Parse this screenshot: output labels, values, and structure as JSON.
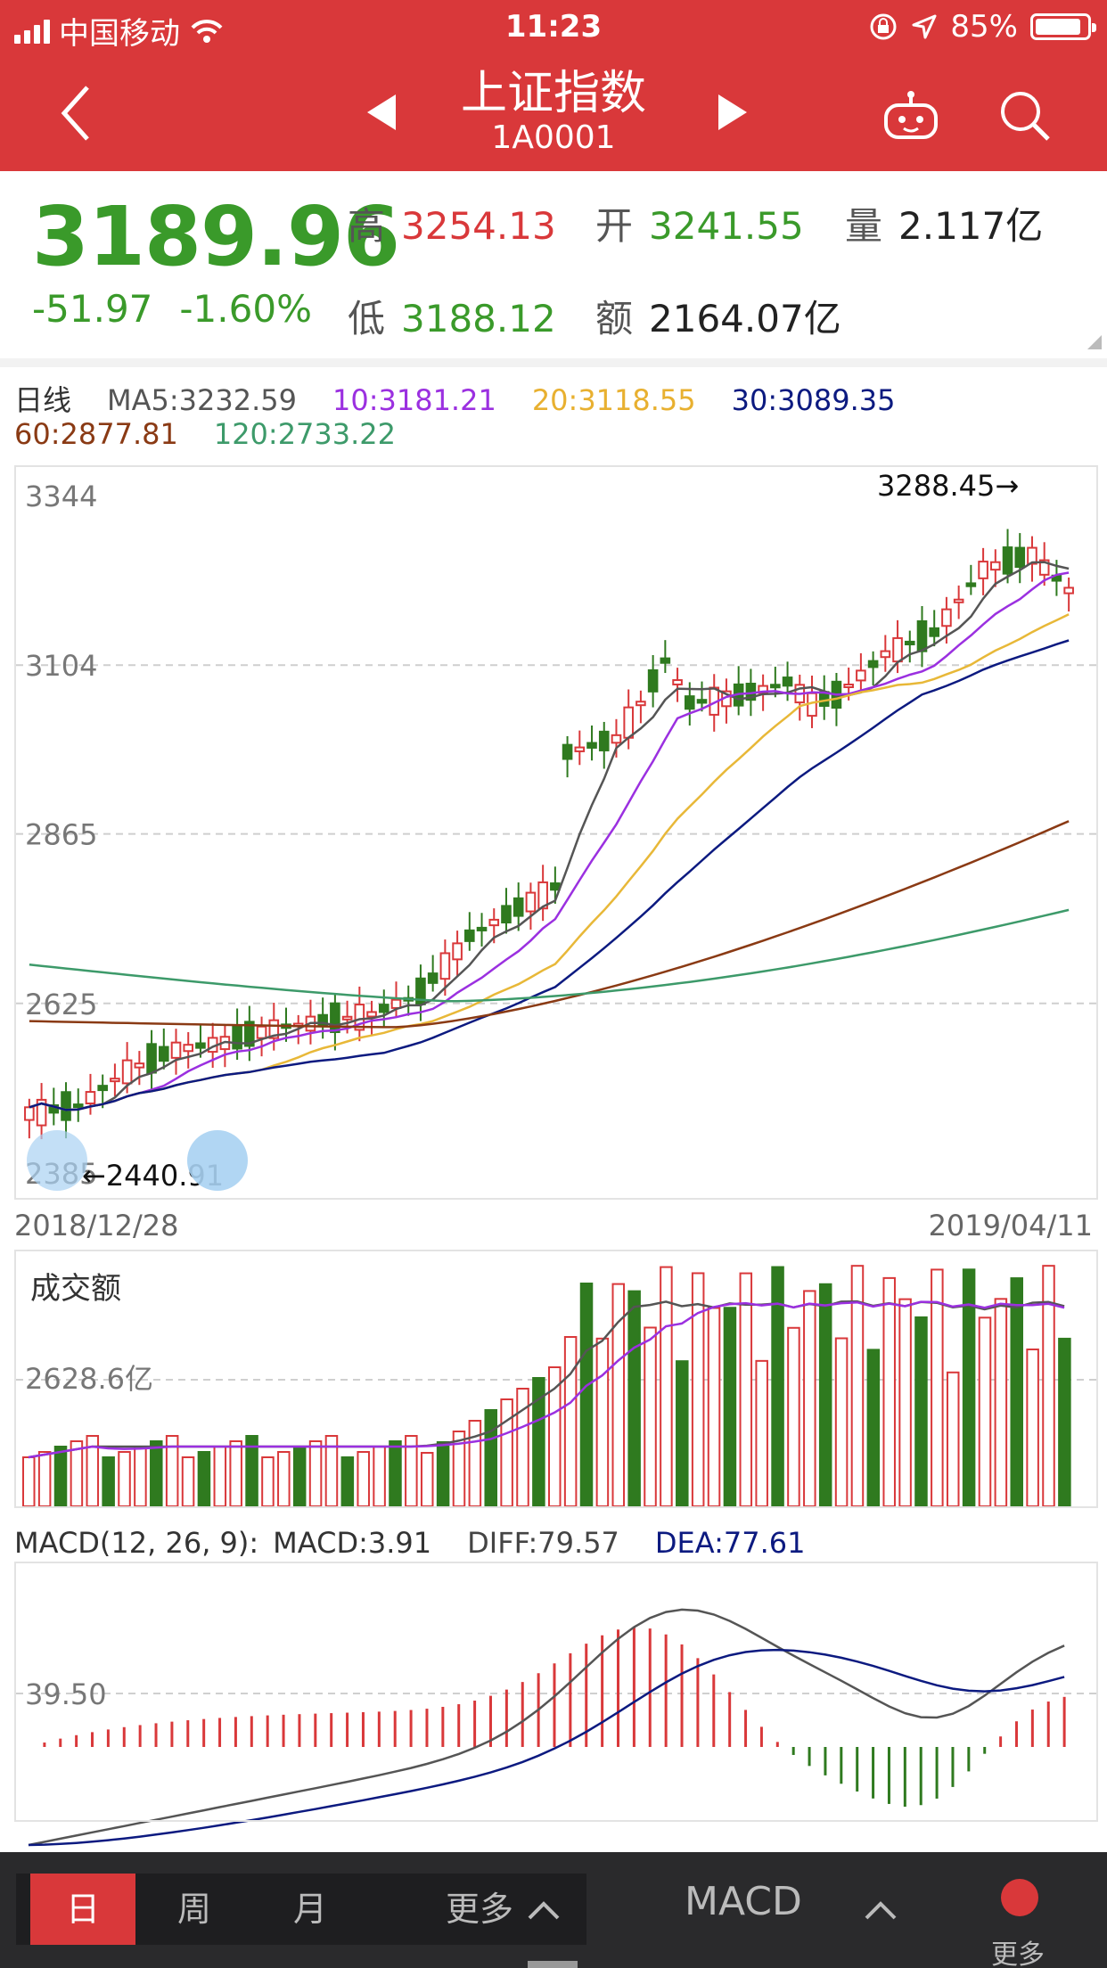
{
  "status_bar": {
    "carrier": "中国移动",
    "time": "11:23",
    "battery": "85%"
  },
  "nav": {
    "title": "上证指数",
    "code": "1A0001"
  },
  "quote": {
    "price": "3189.96",
    "change": "-51.97",
    "change_pct": "-1.60%",
    "high_label": "高",
    "high": "3254.13",
    "open_label": "开",
    "open": "3241.55",
    "volume_label": "量",
    "volume": "2.117亿",
    "low_label": "低",
    "low": "3188.12",
    "amount_label": "额",
    "amount": "2164.07亿"
  },
  "legend": {
    "period": "日线",
    "ma5": "MA5:3232.59",
    "ma10": "10:3181.21",
    "ma20": "20:3118.55",
    "ma30": "30:3089.35",
    "ma60": "60:2877.81",
    "ma120": "120:2733.22"
  },
  "colors": {
    "up": "#d9383a",
    "down": "#2f7a1f",
    "ma5": "#555555",
    "ma10": "#9b30e0",
    "ma20": "#e8b838",
    "ma30": "#0c1a80",
    "ma60": "#8a3a14",
    "ma120": "#3d9a6a"
  },
  "kline": {
    "y_ticks": [
      "3344",
      "3104",
      "2865",
      "2625",
      "2385"
    ],
    "y_values": [
      3344,
      3104,
      2865,
      2625,
      2385
    ],
    "max_marker": "3288.45→",
    "min_marker": "←2440.91",
    "start_date": "2018/12/28",
    "end_date": "2019/04/11"
  },
  "volume": {
    "title": "成交额",
    "y_tick": "2628.6亿"
  },
  "macd": {
    "label": "MACD(12, 26, 9):",
    "macd": "MACD:3.91",
    "diff": "DIFF:79.57",
    "dea": "DEA:77.61",
    "y_tick": "39.50"
  },
  "bottom": {
    "day": "日",
    "week": "周",
    "month": "月",
    "more": "更多",
    "indicator": "MACD",
    "more2": "更多"
  },
  "icons": [
    "back-arrow-icon",
    "prev-triangle-icon",
    "next-triangle-icon",
    "robot-icon",
    "search-icon",
    "wifi-icon",
    "lock-rotation-icon",
    "location-icon",
    "battery-icon",
    "chevron-up-icon",
    "zoom-icon"
  ]
}
